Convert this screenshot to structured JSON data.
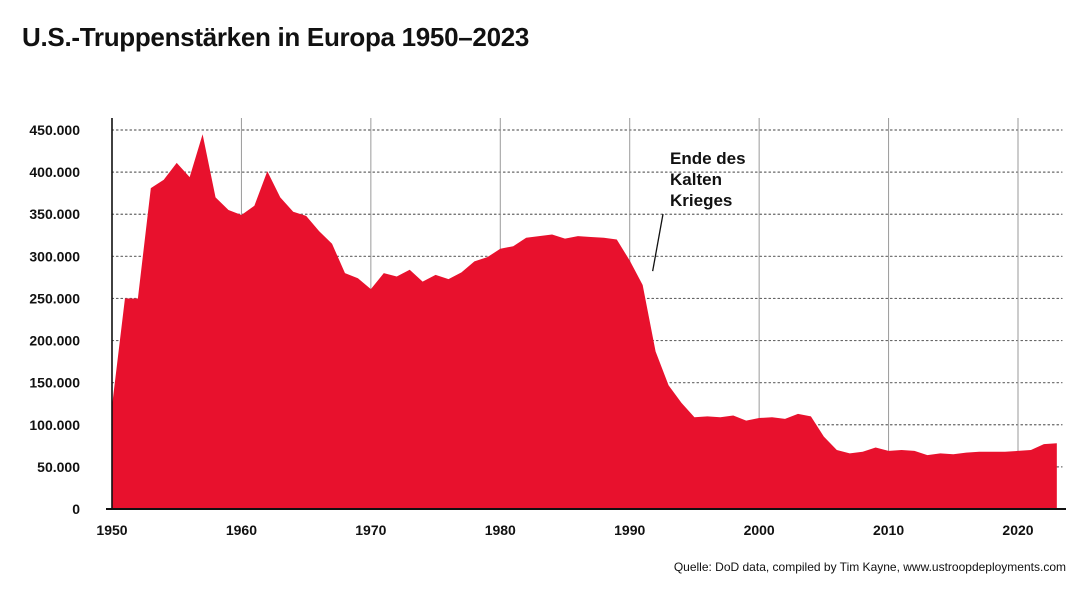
{
  "title": "U.S.-Truppenstärken in Europa 1950–2023",
  "source": "Quelle: DoD data, compiled by Tim Kayne, www.ustroopdeployments.com",
  "colors": {
    "area": "#e8112d",
    "grid": "#9a9a9a",
    "axis": "#111111"
  },
  "chart_data": {
    "type": "area",
    "title": "U.S.-Truppenstärken in Europa 1950–2023",
    "xlabel": "",
    "ylabel": "",
    "xlim": [
      1950,
      2023
    ],
    "ylim": [
      0,
      450000
    ],
    "y_ticks": [
      0,
      50000,
      100000,
      150000,
      200000,
      250000,
      300000,
      350000,
      400000,
      450000
    ],
    "y_tick_labels": [
      "0",
      "50.000",
      "100.000",
      "150.000",
      "200.000",
      "250.000",
      "300.000",
      "350.000",
      "400.000",
      "450.000"
    ],
    "x_ticks": [
      1950,
      1960,
      1970,
      1980,
      1990,
      2000,
      2010,
      2020
    ],
    "x_tick_labels": [
      "1950",
      "1960",
      "1970",
      "1980",
      "1990",
      "2000",
      "2010",
      "2020"
    ],
    "grid": "vertical",
    "annotations": [
      {
        "text_lines": [
          "Ende des",
          "Kalten",
          "Krieges"
        ],
        "x": 1991,
        "y": 280000
      }
    ],
    "series": [
      {
        "x": [
          1950,
          1951,
          1952,
          1953,
          1954,
          1955,
          1956,
          1957,
          1958,
          1959,
          1960,
          1961,
          1962,
          1963,
          1964,
          1965,
          1966,
          1967,
          1968,
          1969,
          1970,
          1971,
          1972,
          1973,
          1974,
          1975,
          1976,
          1977,
          1978,
          1979,
          1980,
          1981,
          1982,
          1983,
          1984,
          1985,
          1986,
          1987,
          1988,
          1989,
          1990,
          1991,
          1992,
          1993,
          1994,
          1995,
          1996,
          1997,
          1998,
          1999,
          2000,
          2001,
          2002,
          2003,
          2004,
          2005,
          2006,
          2007,
          2008,
          2009,
          2010,
          2011,
          2012,
          2013,
          2014,
          2015,
          2016,
          2017,
          2018,
          2019,
          2020,
          2021,
          2022,
          2023
        ],
        "values": [
          122000,
          250000,
          250000,
          381000,
          391000,
          411000,
          394000,
          445000,
          370000,
          355000,
          349000,
          360000,
          401000,
          370000,
          353000,
          348000,
          330000,
          315000,
          280000,
          274000,
          261000,
          280000,
          276000,
          284000,
          270000,
          278000,
          273000,
          281000,
          294000,
          299000,
          309000,
          312000,
          322000,
          324000,
          326000,
          321000,
          324000,
          323000,
          322000,
          320000,
          295000,
          266000,
          187000,
          147000,
          126000,
          109000,
          110000,
          109000,
          111000,
          105000,
          108000,
          109000,
          107000,
          113000,
          110000,
          86000,
          70000,
          66000,
          68000,
          73000,
          69000,
          70000,
          69000,
          64000,
          66000,
          65000,
          67000,
          68000,
          68000,
          68000,
          69000,
          70000,
          77000,
          78000
        ]
      }
    ]
  }
}
